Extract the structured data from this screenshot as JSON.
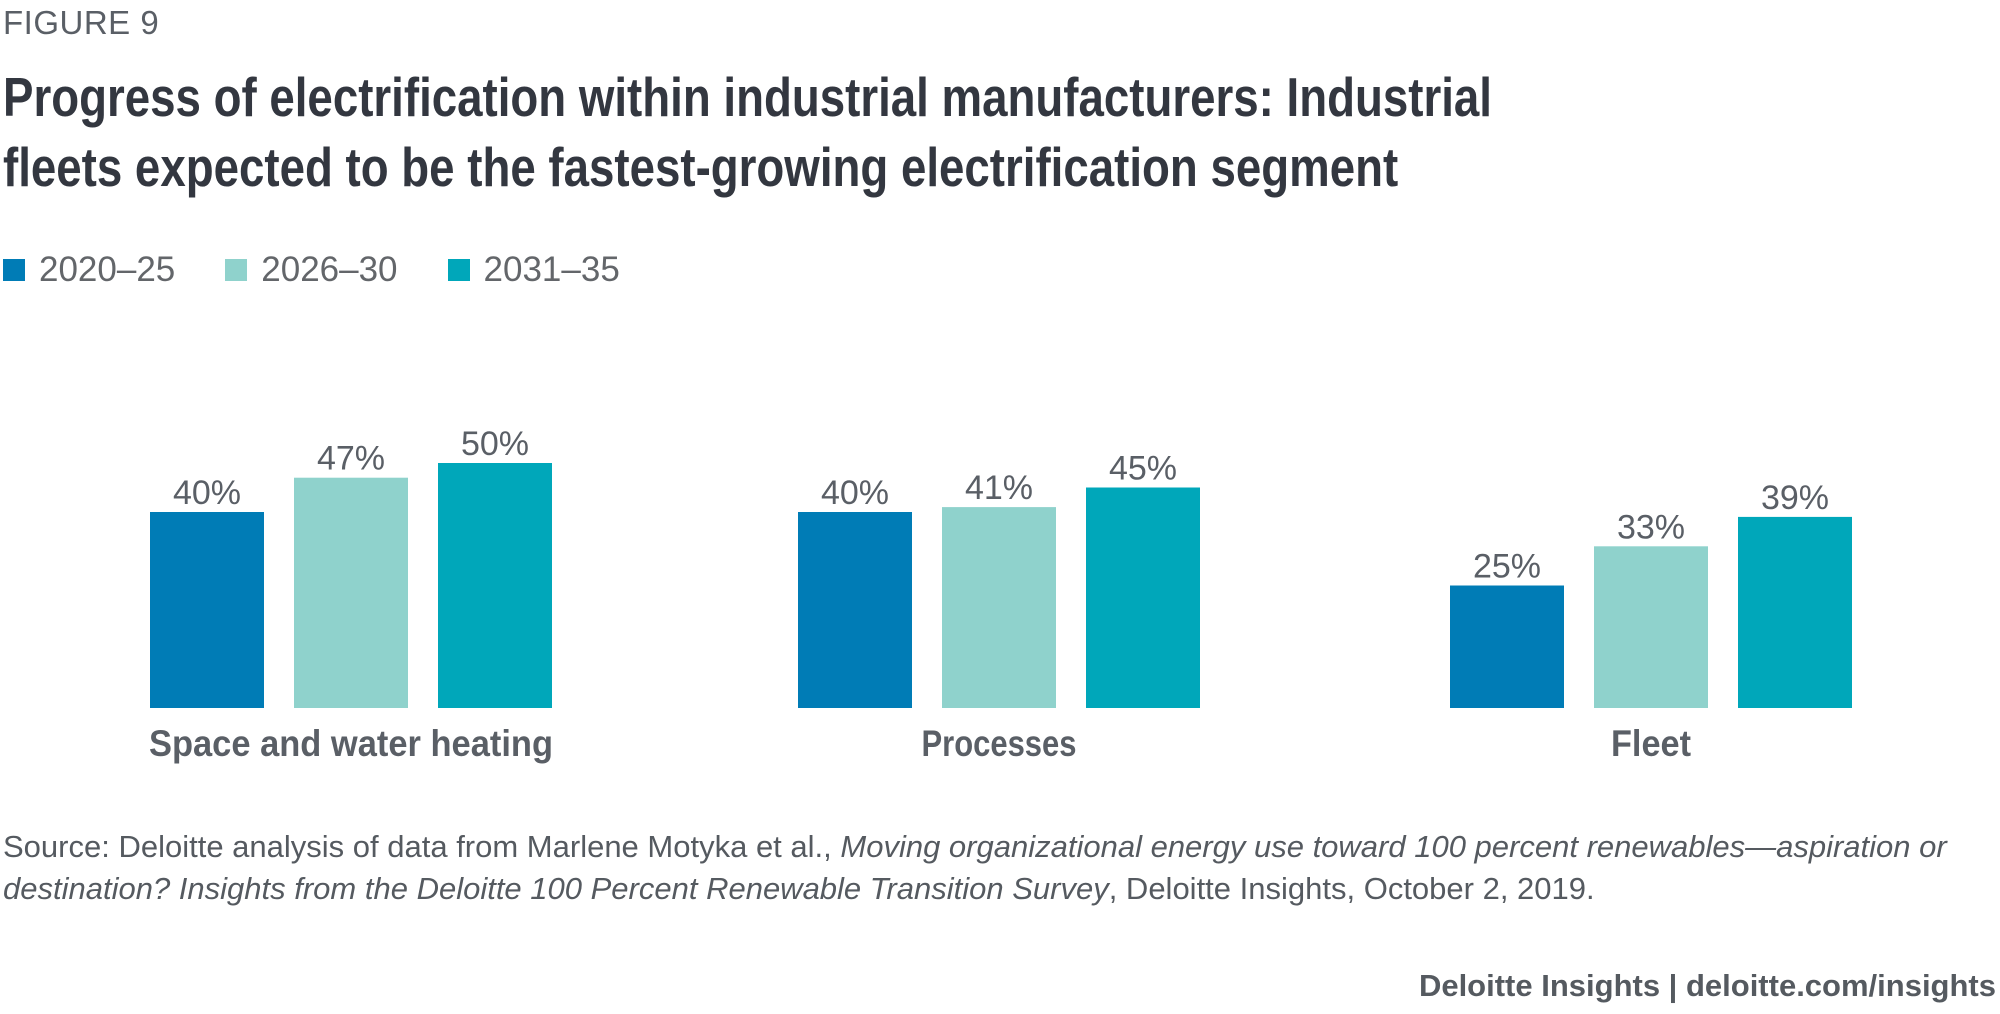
{
  "figure_label": "FIGURE 9",
  "title": "Progress of electrification within industrial manufacturers: Industrial fleets expected to be the fastest-growing electrification segment",
  "source": {
    "prefix": "Source: Deloitte analysis of data from Marlene Motyka et al., ",
    "italic": "Moving organizational energy use toward 100 percent renewables—aspiration or destination? Insights from the Deloitte 100 Percent Renewable Transition Survey",
    "suffix": ", Deloitte Insights, October 2, 2019."
  },
  "footer": "Deloitte Insights | deloitte.com/insights",
  "chart_data": {
    "type": "bar",
    "title": "Progress of electrification within industrial manufacturers: Industrial fleets expected to be the fastest-growing electrification segment",
    "xlabel": "",
    "ylabel": "",
    "ylim": [
      0,
      50
    ],
    "grid": false,
    "legend_position": "top-left",
    "categories": [
      "Space and water heating",
      "Processes",
      "Fleet"
    ],
    "series": [
      {
        "name": "2020–25",
        "color": "#007cb6",
        "values": [
          40,
          40,
          25
        ],
        "labels": [
          "40%",
          "40%",
          "25%"
        ]
      },
      {
        "name": "2026–30",
        "color": "#8fd2cc",
        "values": [
          47,
          41,
          33
        ],
        "labels": [
          "47%",
          "41%",
          "33%"
        ]
      },
      {
        "name": "2031–35",
        "color": "#00a7ba",
        "values": [
          50,
          45,
          39
        ],
        "labels": [
          "50%",
          "45%",
          "39%"
        ]
      }
    ]
  }
}
